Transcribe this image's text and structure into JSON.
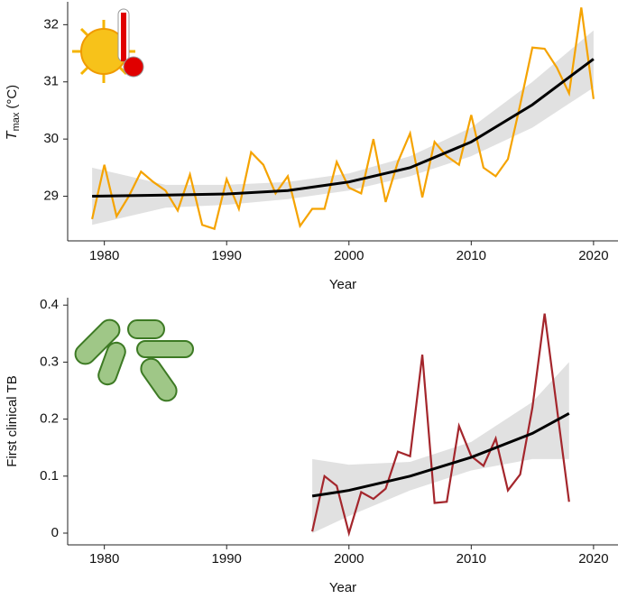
{
  "chart_data": [
    {
      "type": "line",
      "y_label": {
        "symbol": "T",
        "subscript": "max",
        "unit": "(°C)"
      },
      "x_label": "Year",
      "x": [
        1979,
        1980,
        1981,
        1982,
        1983,
        1984,
        1985,
        1986,
        1987,
        1988,
        1989,
        1990,
        1991,
        1992,
        1993,
        1994,
        1995,
        1996,
        1997,
        1998,
        1999,
        2000,
        2001,
        2002,
        2003,
        2004,
        2005,
        2006,
        2007,
        2008,
        2009,
        2010,
        2011,
        2012,
        2013,
        2014,
        2015,
        2016,
        2017,
        2018,
        2019,
        2020
      ],
      "values": [
        28.6,
        29.55,
        28.65,
        29.0,
        29.43,
        29.25,
        29.1,
        28.75,
        29.38,
        28.5,
        28.43,
        29.3,
        28.78,
        29.77,
        29.55,
        29.05,
        29.35,
        28.48,
        28.78,
        28.78,
        29.6,
        29.15,
        29.05,
        30.0,
        28.9,
        29.6,
        30.1,
        28.98,
        29.95,
        29.7,
        29.55,
        30.42,
        29.5,
        29.35,
        29.65,
        30.6,
        31.6,
        31.58,
        31.25,
        30.8,
        32.3,
        30.7
      ],
      "color": "#f5a300",
      "trend": {
        "x": [
          1979,
          1985,
          1990,
          1995,
          2000,
          2005,
          2010,
          2015,
          2020
        ],
        "values": [
          29.0,
          29.02,
          29.04,
          29.1,
          29.25,
          29.5,
          29.95,
          30.6,
          31.4
        ],
        "color": "#000000"
      },
      "band": {
        "x": [
          1979,
          1985,
          1990,
          1995,
          2000,
          2005,
          2010,
          2015,
          2020
        ],
        "lower": [
          28.5,
          28.8,
          28.85,
          28.95,
          29.1,
          29.35,
          29.7,
          30.2,
          30.9
        ],
        "upper": [
          29.5,
          29.2,
          29.2,
          29.25,
          29.4,
          29.7,
          30.2,
          31.0,
          31.9
        ],
        "color": "#d9d9d9"
      },
      "xlim": [
        1977,
        2022
      ],
      "ylim": [
        28.22,
        32.4
      ],
      "xticks": [
        1980,
        1990,
        2000,
        2010,
        2020
      ],
      "yticks": [
        29,
        30,
        31,
        32
      ]
    },
    {
      "type": "line",
      "y_label": "First clinical TB",
      "x_label": "Year",
      "x": [
        1997,
        1998,
        1999,
        2000,
        2001,
        2002,
        2003,
        2004,
        2005,
        2006,
        2007,
        2008,
        2009,
        2010,
        2011,
        2012,
        2013,
        2014,
        2015,
        2016,
        2017,
        2018
      ],
      "values": [
        0.003,
        0.1,
        0.083,
        0.0,
        0.072,
        0.06,
        0.078,
        0.143,
        0.135,
        0.313,
        0.053,
        0.055,
        0.188,
        0.135,
        0.118,
        0.166,
        0.075,
        0.103,
        0.22,
        0.385,
        0.22,
        0.055
      ],
      "color": "#a4262c",
      "trend": {
        "x": [
          1997,
          2000,
          2005,
          2010,
          2015,
          2018
        ],
        "values": [
          0.065,
          0.075,
          0.1,
          0.133,
          0.175,
          0.21
        ],
        "color": "#000000"
      },
      "band": {
        "x": [
          1997,
          2000,
          2005,
          2010,
          2015,
          2018
        ],
        "lower": [
          0.0,
          0.03,
          0.075,
          0.11,
          0.13,
          0.13
        ],
        "upper": [
          0.13,
          0.12,
          0.125,
          0.16,
          0.23,
          0.3
        ],
        "color": "#d9d9d9"
      },
      "xlim": [
        1977,
        2022
      ],
      "ylim": [
        -0.0206,
        0.413
      ],
      "xticks": [
        1980,
        1990,
        2000,
        2010,
        2020
      ],
      "yticks": [
        0,
        0.1,
        0.2,
        0.3,
        0.4
      ]
    }
  ]
}
